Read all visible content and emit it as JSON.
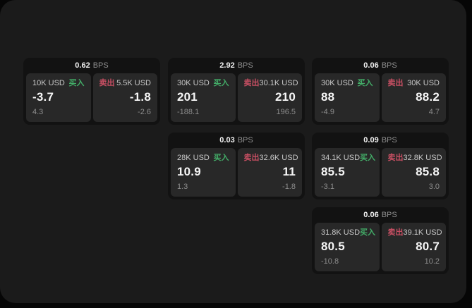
{
  "unit": "BPS",
  "colors": {
    "buy_color": "#43AD68",
    "sell_color": "#C84F63"
  },
  "cards": [
    {
      "bps": "0.62",
      "buy": {
        "label": "买入",
        "amount": "10K USD",
        "value": "-3.7",
        "sub": "4.3"
      },
      "sell": {
        "label": "卖出",
        "amount": "5.5K USD",
        "value": "-1.8",
        "sub": "-2.6"
      }
    },
    {
      "bps": "2.92",
      "buy": {
        "label": "买入",
        "amount": "30K USD",
        "value": "201",
        "sub": "-188.1"
      },
      "sell": {
        "label": "卖出",
        "amount": "30.1K USD",
        "value": "210",
        "sub": "196.5"
      }
    },
    {
      "bps": "0.06",
      "buy": {
        "label": "买入",
        "amount": "30K USD",
        "value": "88",
        "sub": "-4.9"
      },
      "sell": {
        "label": "卖出",
        "amount": "30K USD",
        "value": "88.2",
        "sub": "4.7"
      }
    },
    {
      "bps": "0.03",
      "buy": {
        "label": "买入",
        "amount": "28K USD",
        "value": "10.9",
        "sub": "1.3"
      },
      "sell": {
        "label": "卖出",
        "amount": "32.6K USD",
        "value": "11",
        "sub": "-1.8"
      }
    },
    {
      "bps": "0.09",
      "buy": {
        "label": "买入",
        "amount": "34.1K USD",
        "value": "85.5",
        "sub": "-3.1"
      },
      "sell": {
        "label": "卖出",
        "amount": "32.8K USD",
        "value": "85.8",
        "sub": "3.0"
      }
    },
    {
      "bps": "0.06",
      "buy": {
        "label": "买入",
        "amount": "31.8K USD",
        "value": "80.5",
        "sub": "-10.8"
      },
      "sell": {
        "label": "卖出",
        "amount": "39.1K USD",
        "value": "80.7",
        "sub": "10.2"
      }
    }
  ]
}
